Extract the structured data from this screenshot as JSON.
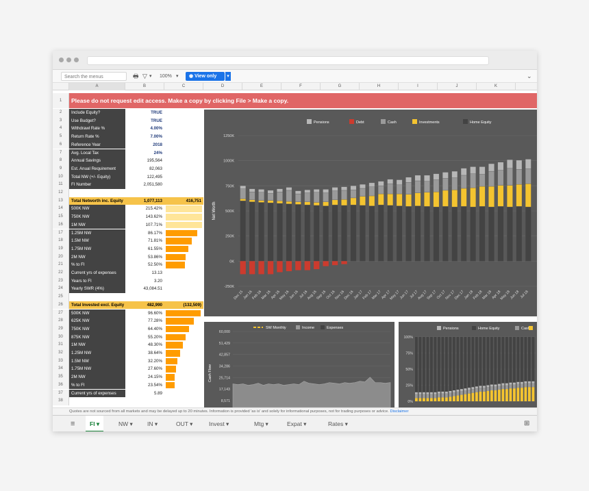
{
  "toolbar": {
    "search_placeholder": "Search the menus (Option+/)",
    "zoom": "100%",
    "view_only": "View only"
  },
  "columns": [
    "A",
    "B",
    "C",
    "D",
    "E",
    "F",
    "G",
    "H",
    "I",
    "J",
    "K"
  ],
  "banner": "Please do not request edit access. Make a copy by clicking File > Make a copy.",
  "settings": [
    {
      "n": "2",
      "label": "Include Equity?",
      "value": "TRUE",
      "blue": true
    },
    {
      "n": "3",
      "label": "Use Budget?",
      "value": "TRUE",
      "blue": true
    },
    {
      "n": "4",
      "label": "Withdrawl Rate %",
      "value": "4.00%",
      "blue": true
    },
    {
      "n": "5",
      "label": "Return Rate %",
      "value": "7.00%",
      "blue": true
    },
    {
      "n": "6",
      "label": "Reference Year",
      "value": "2018",
      "blue": true
    },
    {
      "n": "7",
      "label": "Avg. Local Tax",
      "value": "24%",
      "blue": true
    },
    {
      "n": "8",
      "label": "Annual Savings",
      "value": "195,564"
    },
    {
      "n": "9",
      "label": "Est. Anual Requirement",
      "value": "82,063"
    },
    {
      "n": "10",
      "label": "Total NW (+/- Equity)",
      "value": "122,495"
    },
    {
      "n": "11",
      "label": "FI Number",
      "value": "2,051,580"
    }
  ],
  "block1": {
    "header": {
      "n": "13",
      "label": "Total Networth inc. Equity",
      "value": "1,077,113",
      "value2": "416,751"
    },
    "rows": [
      {
        "n": "14",
        "label": "500K NW",
        "value": "215.42%",
        "fill": 1,
        "pale": true
      },
      {
        "n": "15",
        "label": "750K NW",
        "value": "143.62%",
        "fill": 1,
        "pale": true
      },
      {
        "n": "16",
        "label": "1M NW",
        "value": "107.71%",
        "fill": 1,
        "pale": true
      },
      {
        "n": "17",
        "label": "1.25M NW",
        "value": "86.17%",
        "fill": 0.86
      },
      {
        "n": "18",
        "label": "1.5M NW",
        "value": "71.81%",
        "fill": 0.72
      },
      {
        "n": "19",
        "label": "1.75M NW",
        "value": "61.55%",
        "fill": 0.62
      },
      {
        "n": "20",
        "label": "2M NW",
        "value": "53.86%",
        "fill": 0.54
      },
      {
        "n": "21",
        "label": "% to FI",
        "value": "52.50%",
        "fill": 0.52
      },
      {
        "n": "22",
        "label": "Current yrs of expenses",
        "value": "13.13"
      },
      {
        "n": "23",
        "label": "Years to FI",
        "value": "3.20"
      },
      {
        "n": "24",
        "label": "Yearly SWR (4%)",
        "value": "43,084.51"
      }
    ]
  },
  "block2": {
    "header": {
      "n": "26",
      "label": "Total Invested excl. Equity",
      "value": "482,990",
      "value2": "(132,509)"
    },
    "rows": [
      {
        "n": "27",
        "label": "500K NW",
        "value": "96.60%",
        "fill": 0.97
      },
      {
        "n": "28",
        "label": "625K NW",
        "value": "77.28%",
        "fill": 0.77
      },
      {
        "n": "29",
        "label": "750K NW",
        "value": "64.40%",
        "fill": 0.64
      },
      {
        "n": "30",
        "label": "875K NW",
        "value": "55.20%",
        "fill": 0.55
      },
      {
        "n": "31",
        "label": "1M NW",
        "value": "48.30%",
        "fill": 0.48
      },
      {
        "n": "32",
        "label": "1.25M NW",
        "value": "38.64%",
        "fill": 0.39
      },
      {
        "n": "33",
        "label": "1.5M NW",
        "value": "32.20%",
        "fill": 0.32
      },
      {
        "n": "34",
        "label": "1.75M NW",
        "value": "27.60%",
        "fill": 0.28
      },
      {
        "n": "35",
        "label": "2M NW",
        "value": "24.15%",
        "fill": 0.24
      },
      {
        "n": "36",
        "label": "% to FI",
        "value": "23.54%",
        "fill": 0.24
      },
      {
        "n": "37",
        "label": "Current yrs of expenses",
        "value": "5.89"
      }
    ]
  },
  "extra_rows": [
    "1",
    "12",
    "25",
    "38"
  ],
  "footer": {
    "text": "Quotes are not sourced from all markets and may be delayed up to 20 minutes. Information is provided 'as is' and solely for informational purposes, not for trading purposes or advice.",
    "link": "Disclaimer"
  },
  "tabs": [
    "FI",
    "NW",
    "IN",
    "OUT",
    "Invest",
    "Mtg",
    "Expat",
    "Rates"
  ],
  "colors": {
    "pensions": "#b7b7b7",
    "debt": "#cc3b2e",
    "cash": "#9a9a9a",
    "investments": "#f4c430",
    "equity": "#434343",
    "accent": "#1a73e8",
    "banner": "#e06666"
  },
  "chart_data": [
    {
      "type": "bar",
      "legend": [
        "Pensions",
        "Debt",
        "Cash",
        "Investments",
        "Home Equity"
      ],
      "ylabel": "Net Worth",
      "y_ticks": [
        "1250K",
        "1000K",
        "750K",
        "500K",
        "250K",
        "0K",
        "-250K"
      ],
      "ylim": [
        -250000,
        1250000
      ],
      "categories": [
        "Dec 15",
        "Jan 16",
        "Feb 16",
        "Mar 16",
        "Apr 16",
        "May 16",
        "Jun 16",
        "Jul 16",
        "Aug 16",
        "Sep 16",
        "Oct 16",
        "Nov 16",
        "Dec 16",
        "Jan 17",
        "Feb 17",
        "Mar 17",
        "Apr 17",
        "May 17",
        "Jun 17",
        "Jul 17",
        "Aug 17",
        "Sep 17",
        "Oct 17",
        "Nov 17",
        "Dec 17",
        "Jan 18",
        "Feb 18",
        "Mar 18",
        "Apr 18",
        "May 18",
        "Jun 18",
        "Jul 18"
      ],
      "series": [
        {
          "name": "Home Equity",
          "values": [
            600000,
            590000,
            585000,
            580000,
            575000,
            570000,
            565000,
            560000,
            555000,
            550000,
            560000,
            555000,
            560000,
            555000,
            550000,
            560000,
            555000,
            550000,
            545000,
            550000,
            545000,
            540000,
            545000,
            540000,
            545000,
            540000,
            545000,
            540000,
            545000,
            540000,
            545000,
            540000
          ]
        },
        {
          "name": "Investments",
          "values": [
            20000,
            20000,
            20000,
            25000,
            25000,
            25000,
            25000,
            30000,
            30000,
            40000,
            50000,
            60000,
            70000,
            90000,
            100000,
            110000,
            115000,
            120000,
            120000,
            130000,
            140000,
            150000,
            160000,
            170000,
            180000,
            190000,
            200000,
            205000,
            210000,
            215000,
            220000,
            230000
          ]
        },
        {
          "name": "Cash",
          "values": [
            100000,
            80000,
            80000,
            70000,
            90000,
            110000,
            80000,
            90000,
            100000,
            90000,
            90000,
            90000,
            80000,
            80000,
            90000,
            80000,
            100000,
            90000,
            120000,
            120000,
            110000,
            120000,
            120000,
            120000,
            130000,
            140000,
            120000,
            150000,
            150000,
            170000,
            150000,
            150000
          ]
        },
        {
          "name": "Pensions",
          "values": [
            30000,
            30000,
            30000,
            30000,
            30000,
            30000,
            30000,
            30000,
            30000,
            35000,
            35000,
            35000,
            40000,
            40000,
            40000,
            45000,
            45000,
            50000,
            50000,
            55000,
            60000,
            60000,
            60000,
            65000,
            70000,
            70000,
            75000,
            75000,
            80000,
            85000,
            90000,
            95000
          ]
        },
        {
          "name": "Debt",
          "values": [
            -130000,
            -130000,
            -130000,
            -130000,
            -110000,
            -100000,
            -90000,
            -90000,
            -80000,
            -50000,
            -40000,
            -30000,
            0,
            0,
            0,
            0,
            0,
            0,
            0,
            0,
            0,
            0,
            0,
            0,
            0,
            0,
            0,
            0,
            0,
            0,
            0,
            0
          ]
        }
      ]
    },
    {
      "type": "area",
      "legend": [
        "SW Monthly",
        "Income",
        "Expenses"
      ],
      "ylabel": "Cash Flow",
      "y_ticks": [
        "60,000",
        "51,429",
        "42,857",
        "34,286",
        "25,714",
        "17,143",
        "8,571"
      ],
      "ylim": [
        8571,
        60000
      ],
      "series": [
        {
          "name": "Expenses",
          "values": [
            21000,
            20500,
            21000,
            20000,
            20500,
            21500,
            20000,
            21000,
            20500,
            21000,
            20000,
            20500,
            21000,
            20500,
            23000,
            21500,
            21000,
            20500,
            21000,
            22000,
            21500,
            21000,
            22000,
            21500,
            22000,
            23000,
            22500,
            26000,
            22000,
            22000,
            21500,
            22000
          ]
        }
      ]
    },
    {
      "type": "bar",
      "legend": [
        "Pensions",
        "Home Equity",
        "Cash"
      ],
      "y_ticks": [
        "100%",
        "75%",
        "50%",
        "25%",
        "0%"
      ],
      "ylim": [
        0,
        100
      ],
      "series": [
        {
          "name": "Investments",
          "values": [
            5,
            5,
            5,
            5,
            5,
            5,
            6,
            6,
            6,
            7,
            8,
            9,
            10,
            11,
            12,
            13,
            14,
            15,
            15,
            16,
            17,
            17,
            18,
            19,
            19,
            20,
            20,
            21,
            21,
            22,
            22,
            22
          ]
        }
      ]
    }
  ]
}
